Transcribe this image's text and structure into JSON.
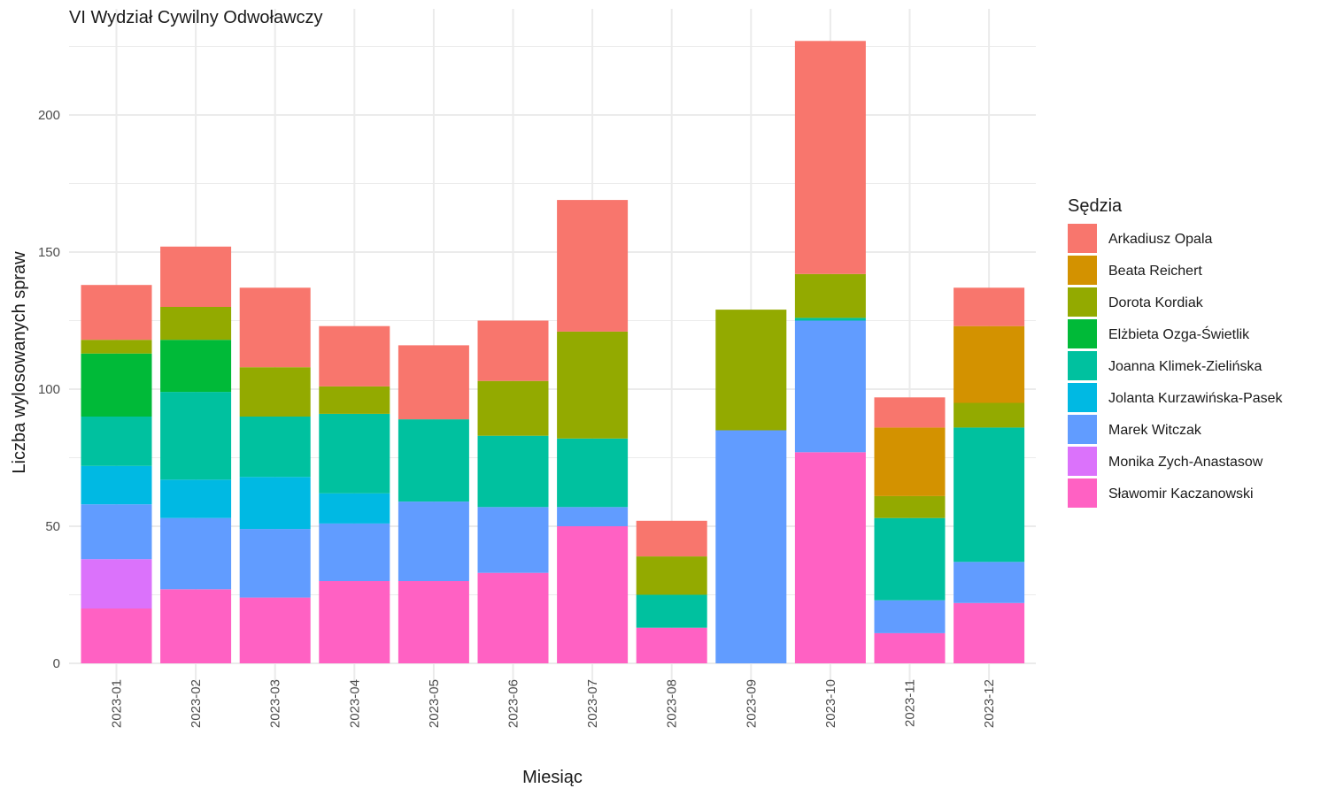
{
  "chart_data": {
    "type": "bar",
    "stacked": true,
    "title": "VI Wydział Cywilny Odwoławczy",
    "xlabel": "Miesiąc",
    "ylabel": "Liczba wylosowanych spraw",
    "ylim": [
      0,
      227
    ],
    "yticks": [
      0,
      50,
      100,
      150,
      200
    ],
    "grid": true,
    "legend_title": "Sędzia",
    "legend_position": "right",
    "categories": [
      "2023-01",
      "2023-02",
      "2023-03",
      "2023-04",
      "2023-05",
      "2023-06",
      "2023-07",
      "2023-08",
      "2023-09",
      "2023-10",
      "2023-11",
      "2023-12"
    ],
    "series": [
      {
        "name": "Sławomir Kaczanowski",
        "color": "#FF61C3",
        "values": [
          20,
          27,
          24,
          30,
          30,
          33,
          50,
          13,
          0,
          77,
          11,
          22
        ]
      },
      {
        "name": "Monika Zych-Anastasow",
        "color": "#DB72FB",
        "values": [
          18,
          0,
          0,
          0,
          0,
          0,
          0,
          0,
          0,
          0,
          0,
          0
        ]
      },
      {
        "name": "Marek Witczak",
        "color": "#619CFF",
        "values": [
          20,
          26,
          25,
          21,
          29,
          24,
          7,
          0,
          85,
          48,
          12,
          15
        ]
      },
      {
        "name": "Jolanta Kurzawińska-Pasek",
        "color": "#00B9E3",
        "values": [
          14,
          14,
          19,
          11,
          0,
          0,
          0,
          0,
          0,
          0,
          0,
          0
        ]
      },
      {
        "name": "Joanna Klimek-Zielińska",
        "color": "#00C19F",
        "values": [
          18,
          32,
          22,
          29,
          30,
          26,
          25,
          12,
          0,
          1,
          30,
          49
        ]
      },
      {
        "name": "Elżbieta Ozga-Świetlik",
        "color": "#00BA38",
        "values": [
          23,
          19,
          0,
          0,
          0,
          0,
          0,
          0,
          0,
          0,
          0,
          0
        ]
      },
      {
        "name": "Dorota Kordiak",
        "color": "#93AA00",
        "values": [
          5,
          12,
          18,
          10,
          0,
          20,
          39,
          14,
          44,
          16,
          8,
          9
        ]
      },
      {
        "name": "Beata Reichert",
        "color": "#D39200",
        "values": [
          0,
          0,
          0,
          0,
          0,
          0,
          0,
          0,
          0,
          0,
          25,
          28
        ]
      },
      {
        "name": "Arkadiusz Opala",
        "color": "#F8766D",
        "values": [
          20,
          22,
          29,
          22,
          27,
          22,
          48,
          13,
          0,
          85,
          11,
          14
        ]
      }
    ],
    "legend_order": [
      "Arkadiusz Opala",
      "Beata Reichert",
      "Dorota Kordiak",
      "Elżbieta Ozga-Świetlik",
      "Joanna Klimek-Zielińska",
      "Jolanta Kurzawińska-Pasek",
      "Marek Witczak",
      "Monika Zych-Anastasow",
      "Sławomir Kaczanowski"
    ],
    "colors": {
      "gridline": "#EBEBEB",
      "tick_text": "#4D4D4D",
      "text": "#1A1A1A"
    }
  }
}
